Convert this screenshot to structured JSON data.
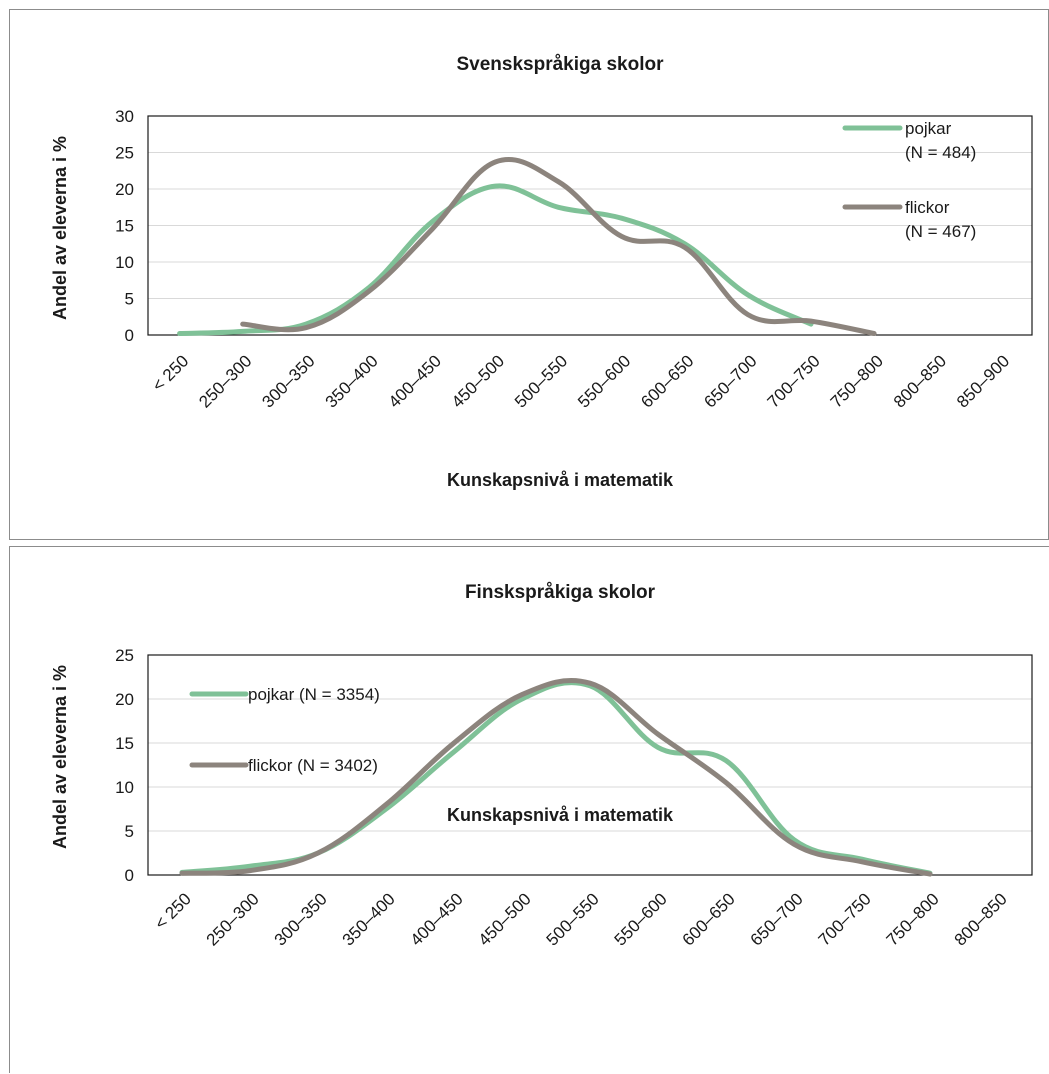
{
  "chart_data": [
    {
      "type": "line",
      "title": "Svenskspråkiga skolor",
      "xlabel": "Kunskapsnivå i matematik",
      "ylabel": "Andel av eleverna i %",
      "ylim": [
        0,
        30
      ],
      "yticks": [
        0,
        5,
        10,
        15,
        20,
        25,
        30
      ],
      "grid": true,
      "legend_position": "right",
      "categories": [
        "< 250",
        "250–300",
        "300–350",
        "350–400",
        "400–450",
        "450–500",
        "500–550",
        "550–600",
        "600–650",
        "650–700",
        "700–750",
        "750–800",
        "800–850",
        "850–900"
      ],
      "series": [
        {
          "name": "pojkar",
          "legend_lines": [
            "pojkar",
            "(N = 484)"
          ],
          "color": "#7fc197",
          "values": [
            0.2,
            0.5,
            1.5,
            6.5,
            15.5,
            20.4,
            17.5,
            16.0,
            12.5,
            5.5,
            1.5,
            null,
            null,
            null
          ]
        },
        {
          "name": "flickor",
          "legend_lines": [
            "flickor",
            "(N = 467)"
          ],
          "color": "#8c847d",
          "values": [
            null,
            1.5,
            1.0,
            6.0,
            14.5,
            23.7,
            21.0,
            13.5,
            12.0,
            2.8,
            1.9,
            0.2,
            null,
            null
          ]
        }
      ]
    },
    {
      "type": "line",
      "title": "Finskspråkiga skolor",
      "xlabel": "Kunskapsnivå i matematik",
      "ylabel": "Andel av eleverna i %",
      "ylim": [
        0,
        25
      ],
      "yticks": [
        0,
        5,
        10,
        15,
        20,
        25
      ],
      "grid": true,
      "legend_position": "top-left",
      "categories": [
        "< 250",
        "250–300",
        "300–350",
        "350–400",
        "400–450",
        "450–500",
        "500–550",
        "550–600",
        "600–650",
        "650–700",
        "700–750",
        "750–800",
        "800–850"
      ],
      "series": [
        {
          "name": "pojkar",
          "legend_lines": [
            "pojkar (N = 3354)"
          ],
          "color": "#7fc197",
          "values": [
            0.3,
            1.0,
            2.5,
            7.5,
            14.0,
            20.0,
            21.5,
            14.5,
            13.0,
            4.0,
            1.8,
            0.2,
            null
          ]
        },
        {
          "name": "flickor",
          "legend_lines": [
            "flickor (N = 3402)"
          ],
          "color": "#8c847d",
          "values": [
            0.2,
            0.5,
            2.5,
            8.0,
            15.0,
            20.5,
            21.8,
            16.0,
            10.5,
            3.5,
            1.5,
            0.1,
            null
          ]
        }
      ]
    }
  ]
}
